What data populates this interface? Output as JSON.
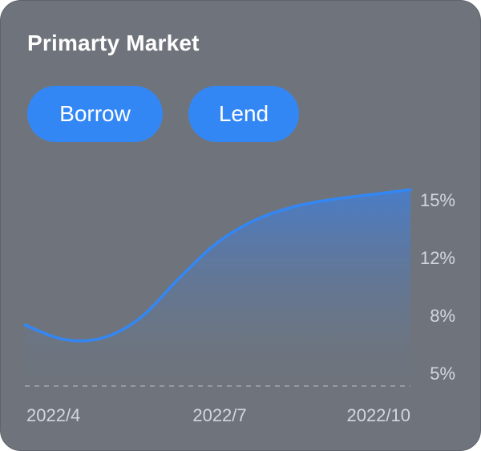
{
  "card": {
    "title": "Primarty Market"
  },
  "tabs": [
    {
      "label": "Borrow"
    },
    {
      "label": "Lend"
    }
  ],
  "colors": {
    "card_bg": "#6f747c",
    "accent": "#3387f5",
    "axis_text": "#d3d6db",
    "baseline": "#a3a8af"
  },
  "chart_data": {
    "type": "area",
    "x_ticks": [
      "2022/4",
      "2022/7",
      "2022/10"
    ],
    "y_ticks": [
      "15%",
      "12%",
      "8%",
      "5%"
    ],
    "y_tick_values": [
      15,
      12,
      8,
      5
    ],
    "y_axis_position": "right",
    "series": [
      {
        "x": [
          0,
          0.1,
          0.2,
          0.3,
          0.4,
          0.5,
          0.6,
          0.7,
          0.8,
          0.9,
          1.0
        ],
        "values": [
          7.4,
          6.2,
          6.3,
          8.0,
          11.3,
          14.3,
          16.2,
          17.3,
          17.9,
          18.3,
          18.7
        ]
      }
    ],
    "ylim": [
      2.3,
      19.8
    ],
    "grid": false
  }
}
